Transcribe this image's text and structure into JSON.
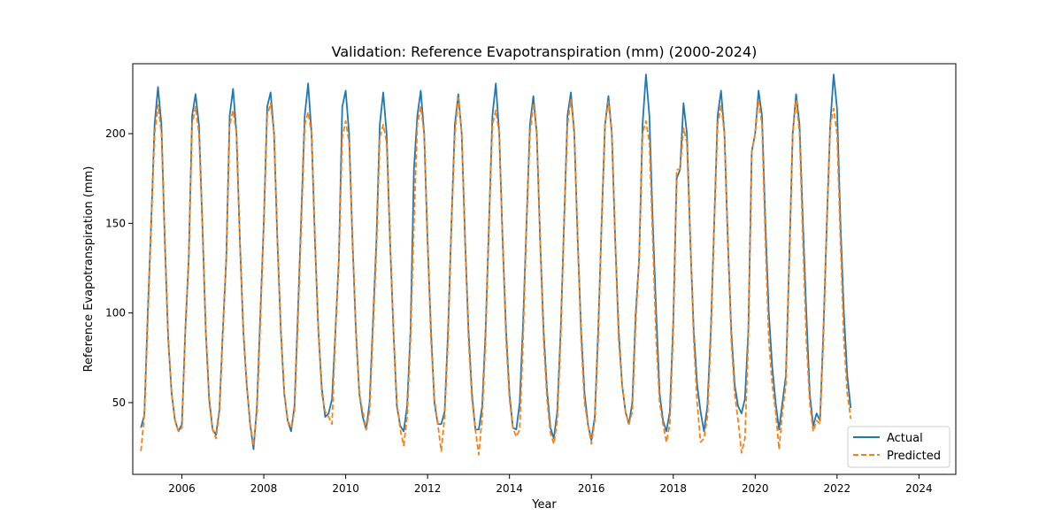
{
  "chart_data": {
    "type": "line",
    "title": "Validation: Reference Evapotranspiration (mm) (2000-2024)",
    "xlabel": "Year",
    "ylabel": "Reference Evapotranspiration (mm)",
    "xlim": [
      2004.8,
      2024.9
    ],
    "ylim": [
      10,
      239
    ],
    "xticks": [
      2006,
      2008,
      2010,
      2012,
      2014,
      2016,
      2018,
      2020,
      2022,
      2024
    ],
    "yticks": [
      50,
      100,
      150,
      200
    ],
    "grid": false,
    "legend": "lower-right",
    "x_start_year": 2005,
    "series": [
      {
        "name": "Actual",
        "color": "#1f77b4",
        "style": "solid",
        "values": [
          36,
          43,
          100,
          150,
          205,
          226,
          205,
          140,
          85,
          55,
          40,
          34,
          38,
          90,
          130,
          210,
          222,
          205,
          150,
          90,
          52,
          35,
          32,
          46,
          90,
          130,
          210,
          225,
          200,
          140,
          90,
          60,
          38,
          24,
          48,
          100,
          150,
          215,
          223,
          200,
          140,
          90,
          55,
          40,
          34,
          48,
          100,
          155,
          210,
          228,
          200,
          140,
          90,
          58,
          42,
          44,
          52,
          90,
          130,
          215,
          224,
          200,
          140,
          90,
          55,
          42,
          35,
          50,
          95,
          140,
          205,
          223,
          200,
          140,
          90,
          48,
          37,
          34,
          48,
          90,
          180,
          210,
          224,
          200,
          140,
          90,
          50,
          38,
          38,
          45,
          90,
          150,
          205,
          222,
          200,
          140,
          90,
          55,
          35,
          35,
          48,
          90,
          150,
          210,
          228,
          200,
          140,
          90,
          55,
          36,
          35,
          50,
          95,
          150,
          205,
          221,
          200,
          140,
          90,
          57,
          36,
          30,
          45,
          90,
          150,
          210,
          223,
          200,
          140,
          90,
          55,
          38,
          29,
          42,
          90,
          150,
          205,
          221,
          200,
          140,
          90,
          60,
          45,
          38,
          50,
          100,
          130,
          205,
          233,
          210,
          150,
          100,
          55,
          40,
          34,
          45,
          95,
          175,
          180,
          217,
          200,
          140,
          90,
          60,
          45,
          34,
          48,
          90,
          150,
          210,
          224,
          200,
          140,
          90,
          60,
          48,
          44,
          52,
          90,
          190,
          200,
          224,
          210,
          150,
          100,
          70,
          50,
          35,
          50,
          65,
          130,
          200,
          222,
          205,
          150,
          100,
          55,
          37,
          44,
          40,
          90,
          150,
          205,
          233,
          214,
          150,
          100,
          65,
          47
        ]
      },
      {
        "name": "Predicted",
        "color": "#ff7f0e",
        "style": "dashed",
        "values": [
          23,
          43,
          95,
          150,
          200,
          216,
          200,
          140,
          85,
          55,
          40,
          34,
          36,
          90,
          130,
          205,
          215,
          200,
          150,
          90,
          50,
          35,
          30,
          45,
          90,
          130,
          205,
          213,
          200,
          140,
          90,
          60,
          38,
          26,
          45,
          95,
          150,
          210,
          217,
          200,
          140,
          90,
          55,
          40,
          36,
          45,
          95,
          150,
          205,
          212,
          200,
          140,
          90,
          55,
          45,
          42,
          38,
          90,
          130,
          198,
          207,
          195,
          140,
          90,
          55,
          45,
          35,
          45,
          90,
          135,
          198,
          205,
          195,
          140,
          90,
          50,
          35,
          26,
          42,
          85,
          150,
          205,
          215,
          200,
          140,
          85,
          52,
          38,
          23,
          42,
          85,
          150,
          200,
          220,
          200,
          140,
          85,
          52,
          35,
          21,
          42,
          85,
          150,
          205,
          213,
          200,
          140,
          85,
          52,
          36,
          31,
          35,
          85,
          150,
          200,
          217,
          200,
          140,
          85,
          52,
          33,
          27,
          40,
          85,
          150,
          205,
          219,
          200,
          140,
          85,
          50,
          38,
          27,
          40,
          85,
          150,
          205,
          218,
          200,
          140,
          85,
          60,
          45,
          38,
          45,
          95,
          130,
          200,
          207,
          195,
          140,
          85,
          50,
          38,
          28,
          38,
          90,
          180,
          180,
          203,
          195,
          140,
          85,
          50,
          28,
          30,
          42,
          85,
          150,
          205,
          216,
          200,
          140,
          85,
          55,
          40,
          22,
          30,
          85,
          190,
          200,
          219,
          205,
          140,
          85,
          60,
          45,
          24,
          45,
          60,
          130,
          200,
          219,
          200,
          140,
          85,
          50,
          34,
          40,
          38,
          85,
          150,
          205,
          214,
          200,
          140,
          85,
          55,
          41
        ]
      }
    ]
  }
}
